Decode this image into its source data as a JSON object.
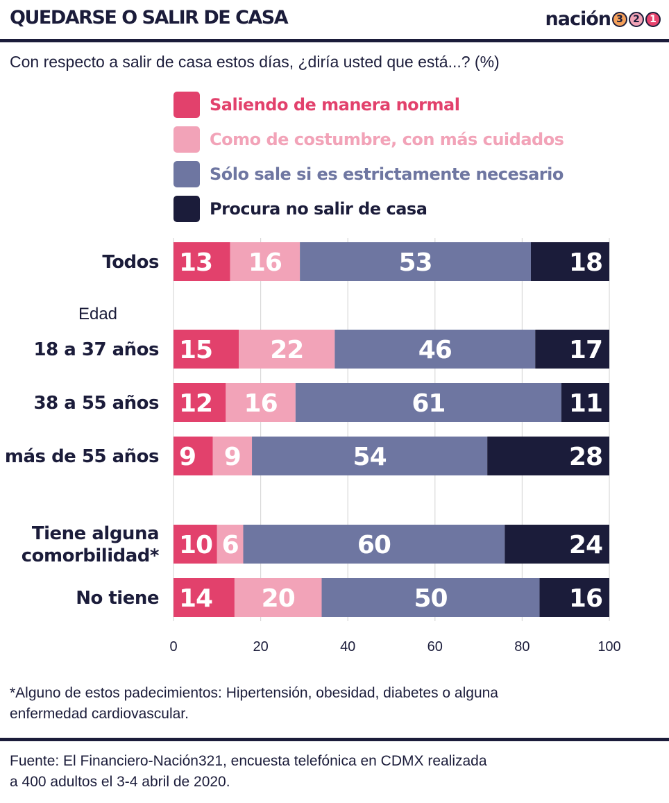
{
  "header": {
    "title": "QUEDARSE O SALIR DE CASA",
    "brand_word": "nación",
    "brand_digits": [
      "3",
      "2",
      "1"
    ]
  },
  "subtitle": "Con respecto a salir de casa estos días, ¿diría usted que está...? (%)",
  "colors": {
    "normal": "#e2416c",
    "costumbre": "#f2a3b8",
    "necesario": "#6e76a1",
    "no_salir": "#1b1c3a",
    "grid": "#d9d9d9"
  },
  "chart_data": {
    "type": "bar",
    "orientation": "horizontal",
    "stacked": true,
    "categories": [
      "Todos",
      "18 a 37 años",
      "38 a 55 años",
      "más de 55 años",
      "Tiene alguna comorbilidad*",
      "No tiene"
    ],
    "category_lines": [
      [
        "Todos"
      ],
      [
        "18 a 37 años"
      ],
      [
        "38 a 55 años"
      ],
      [
        "más de 55 años"
      ],
      [
        "Tiene alguna",
        "comorbilidad*"
      ],
      [
        "No tiene"
      ]
    ],
    "group_label": "Edad",
    "series": [
      {
        "name": "Saliendo de manera normal",
        "color": "#e2416c",
        "values": [
          13,
          15,
          12,
          9,
          10,
          14
        ]
      },
      {
        "name": "Como de costumbre, con más cuidados",
        "color": "#f2a3b8",
        "values": [
          16,
          22,
          16,
          9,
          6,
          20
        ]
      },
      {
        "name": "Sólo sale si es estrictamente necesario",
        "color": "#6e76a1",
        "values": [
          53,
          46,
          61,
          54,
          60,
          50
        ]
      },
      {
        "name": "Procura no salir de casa",
        "color": "#1b1c3a",
        "values": [
          18,
          17,
          11,
          28,
          24,
          16
        ]
      }
    ],
    "xlim": [
      0,
      100
    ],
    "xticks": [
      "0",
      "20",
      "40",
      "60",
      "80",
      "100"
    ],
    "grid": true,
    "legend_position": "top"
  },
  "footnote": "*Alguno de estos padecimientos: Hipertensión, obesidad, diabetes o alguna enfermedad cardiovascular.",
  "source": {
    "line1": "Fuente: El Financiero-Nación321, encuesta telefónica en CDMX realizada",
    "line2": " a 400 adultos el 3-4 abril de 2020."
  }
}
